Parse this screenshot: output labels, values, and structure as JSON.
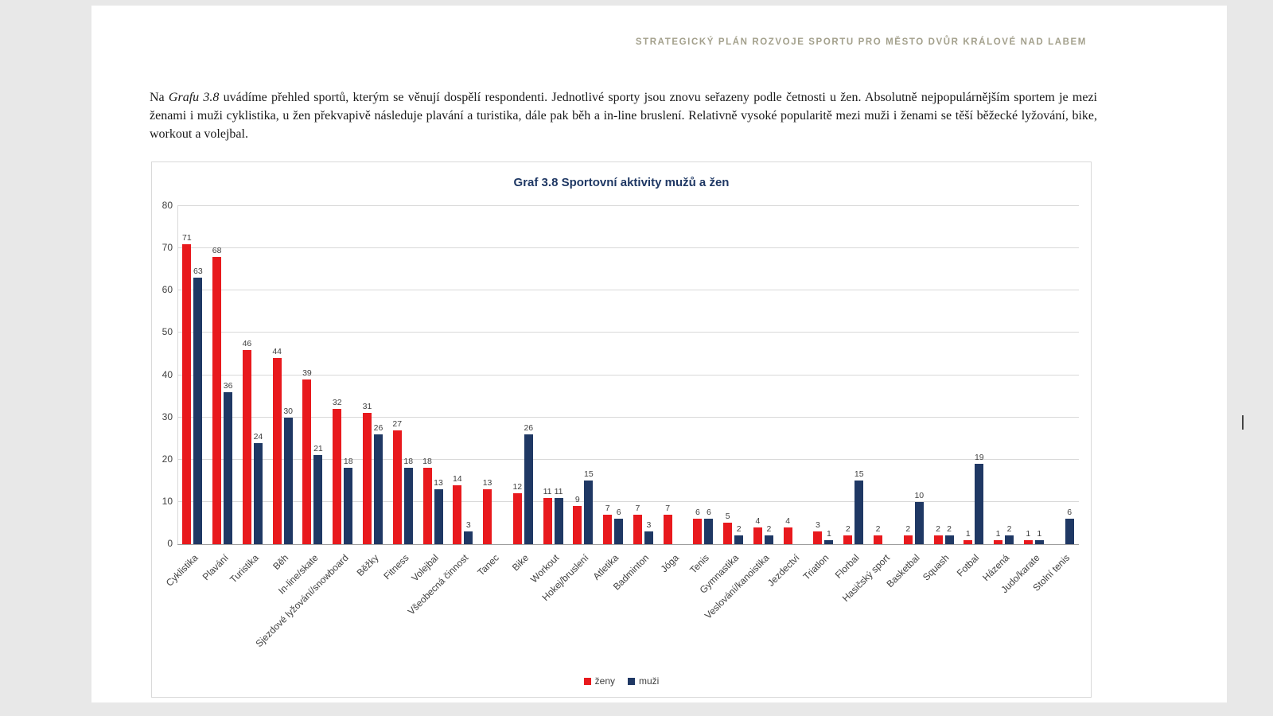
{
  "page": {
    "header": "STRATEGICKÝ PLÁN ROZVOJE SPORTU PRO MĚSTO DVŮR KRÁLOVÉ NAD LABEM",
    "paragraph": {
      "prefix": "Na ",
      "italic": "Grafu 3.8",
      "rest": " uvádíme přehled sportů, kterým se věnují dospělí respondenti. Jednotlivé sporty jsou znovu seřazeny podle četnosti u žen. Absolutně nejpopulárnějším sportem je mezi ženami i muži cyklistika, u žen překvapivě následuje plavání a turistika, dále pak běh a in-line bruslení. Relativně vysoké popularitě mezi muži i ženami se těší běžecké lyžování, bike, workout a volejbal."
    }
  },
  "chart_data": {
    "type": "bar",
    "title": "Graf 3.8 Sportovní aktivity mužů a žen",
    "categories": [
      "Cyklistika",
      "Plavání",
      "Turistika",
      "Běh",
      "In-line/skate",
      "Sjezdové lyžování/snowboard",
      "Běžky",
      "Fitness",
      "Volejbal",
      "Všeobecná činnost",
      "Tanec",
      "Bike",
      "Workout",
      "Hokej/bruslení",
      "Atletika",
      "Badminton",
      "Jóga",
      "Tenis",
      "Gymnastika",
      "Veslování/kanoistika",
      "Jezdectví",
      "Triatlon",
      "Florbal",
      "Hasičský sport",
      "Basketbal",
      "Squash",
      "Fotbal",
      "Házená",
      "Judo/karate",
      "Stolní tenis"
    ],
    "series": [
      {
        "name": "ženy",
        "color": "#e8191d",
        "values": [
          71,
          68,
          46,
          44,
          39,
          32,
          31,
          27,
          18,
          14,
          13,
          12,
          11,
          9,
          7,
          7,
          7,
          6,
          5,
          4,
          4,
          3,
          2,
          2,
          2,
          2,
          1,
          1,
          1,
          null
        ]
      },
      {
        "name": "muži",
        "color": "#1f3864",
        "values": [
          63,
          36,
          24,
          30,
          21,
          18,
          26,
          18,
          13,
          3,
          null,
          26,
          11,
          15,
          6,
          3,
          null,
          6,
          2,
          2,
          null,
          1,
          15,
          null,
          10,
          2,
          19,
          2,
          1,
          6
        ]
      }
    ],
    "ylim": [
      0,
      80
    ],
    "ytick_step": 10,
    "grid": true,
    "legend_position": "bottom"
  }
}
